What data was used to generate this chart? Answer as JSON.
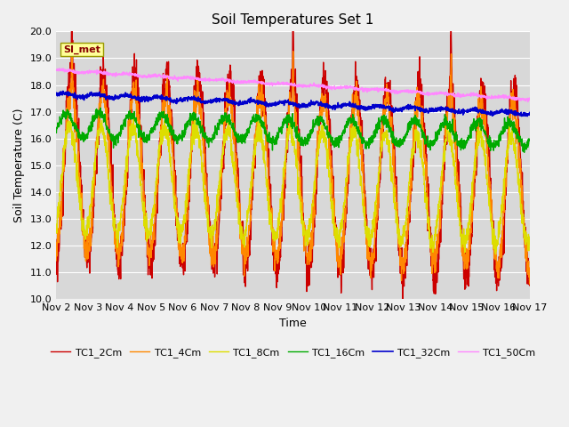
{
  "title": "Soil Temperatures Set 1",
  "xlabel": "Time",
  "ylabel": "Soil Temperature (C)",
  "ylim": [
    10.0,
    20.0
  ],
  "yticks": [
    10.0,
    11.0,
    12.0,
    13.0,
    14.0,
    15.0,
    16.0,
    17.0,
    18.0,
    19.0,
    20.0
  ],
  "xlabels": [
    "Nov 2",
    "Nov 3",
    "Nov 4",
    "Nov 5",
    "Nov 6",
    "Nov 7",
    "Nov 8",
    "Nov 9",
    "Nov 10",
    "Nov 11",
    "Nov 12",
    "Nov 13",
    "Nov 14",
    "Nov 15",
    "Nov 16",
    "Nov 17"
  ],
  "legend_labels": [
    "TC1_2Cm",
    "TC1_4Cm",
    "TC1_8Cm",
    "TC1_16Cm",
    "TC1_32Cm",
    "TC1_50Cm"
  ],
  "line_colors": [
    "#cc0000",
    "#ff8800",
    "#dddd00",
    "#00aa00",
    "#0000cc",
    "#ff88ff"
  ],
  "line_widths": [
    1.0,
    1.0,
    1.0,
    1.0,
    1.2,
    1.0
  ],
  "annotation_text": "SI_met",
  "annotation_box_color": "#ffff99",
  "annotation_box_edge": "#999900",
  "fig_bg_color": "#f0f0f0",
  "plot_bg_color": "#d8d8d8",
  "title_fontsize": 11,
  "label_fontsize": 9,
  "tick_fontsize": 8
}
